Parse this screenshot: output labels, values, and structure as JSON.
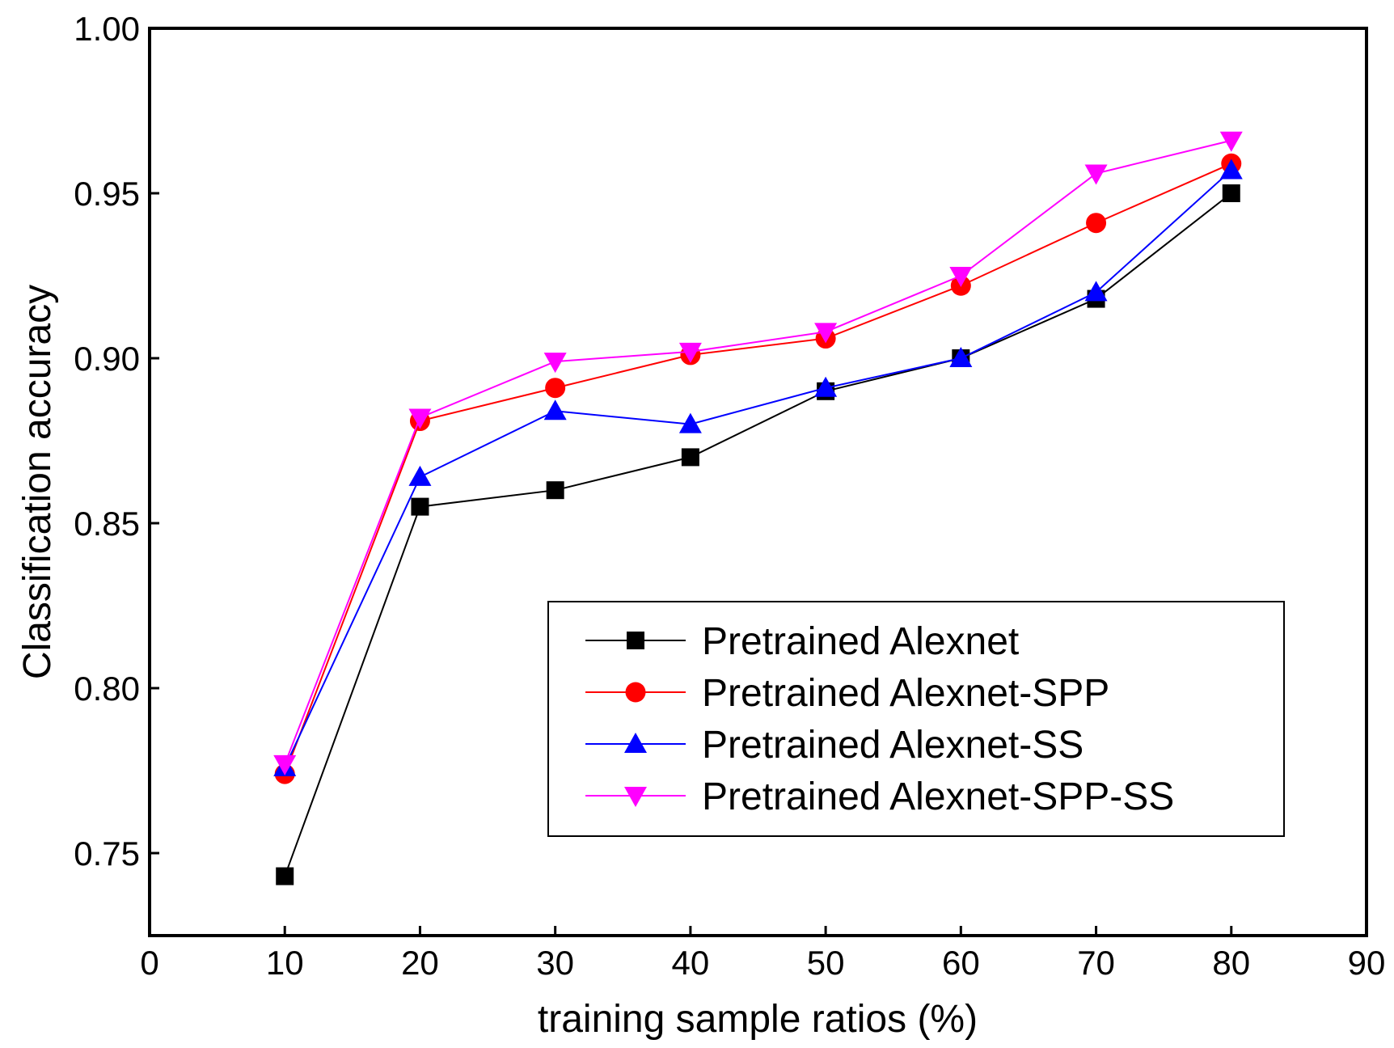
{
  "chart_data": {
    "type": "line",
    "title": "",
    "xlabel": "training sample ratios (%)",
    "ylabel": "Classification accuracy",
    "xlim": [
      0,
      90
    ],
    "ylim": [
      0.725,
      1.0
    ],
    "x_ticks": [
      0,
      10,
      20,
      30,
      40,
      50,
      60,
      70,
      80,
      90
    ],
    "x_tick_labels": [
      "0",
      "10",
      "20",
      "30",
      "40",
      "50",
      "60",
      "70",
      "80",
      "90"
    ],
    "y_ticks": [
      0.75,
      0.8,
      0.85,
      0.9,
      0.95,
      1.0
    ],
    "y_tick_labels": [
      "0.75",
      "0.80",
      "0.85",
      "0.90",
      "0.95",
      "1.00"
    ],
    "grid": false,
    "legend_position": "lower-right",
    "x": [
      10,
      20,
      30,
      40,
      50,
      60,
      70,
      80
    ],
    "series": [
      {
        "name": "Pretrained Alexnet",
        "color": "#000000",
        "marker": "square",
        "values": [
          0.743,
          0.855,
          0.86,
          0.87,
          0.89,
          0.9,
          0.918,
          0.95
        ]
      },
      {
        "name": "Pretrained Alexnet-SPP",
        "color": "#ff0000",
        "marker": "circle",
        "values": [
          0.774,
          0.881,
          0.891,
          0.901,
          0.906,
          0.922,
          0.941,
          0.959
        ]
      },
      {
        "name": "Pretrained Alexnet-SS",
        "color": "#0000ff",
        "marker": "triangle-up",
        "values": [
          0.776,
          0.864,
          0.884,
          0.88,
          0.891,
          0.9,
          0.92,
          0.957
        ]
      },
      {
        "name": "Pretrained Alexnet-SPP-SS",
        "color": "#ff00ff",
        "marker": "triangle-down",
        "values": [
          0.777,
          0.882,
          0.899,
          0.902,
          0.908,
          0.925,
          0.956,
          0.966
        ]
      }
    ]
  }
}
